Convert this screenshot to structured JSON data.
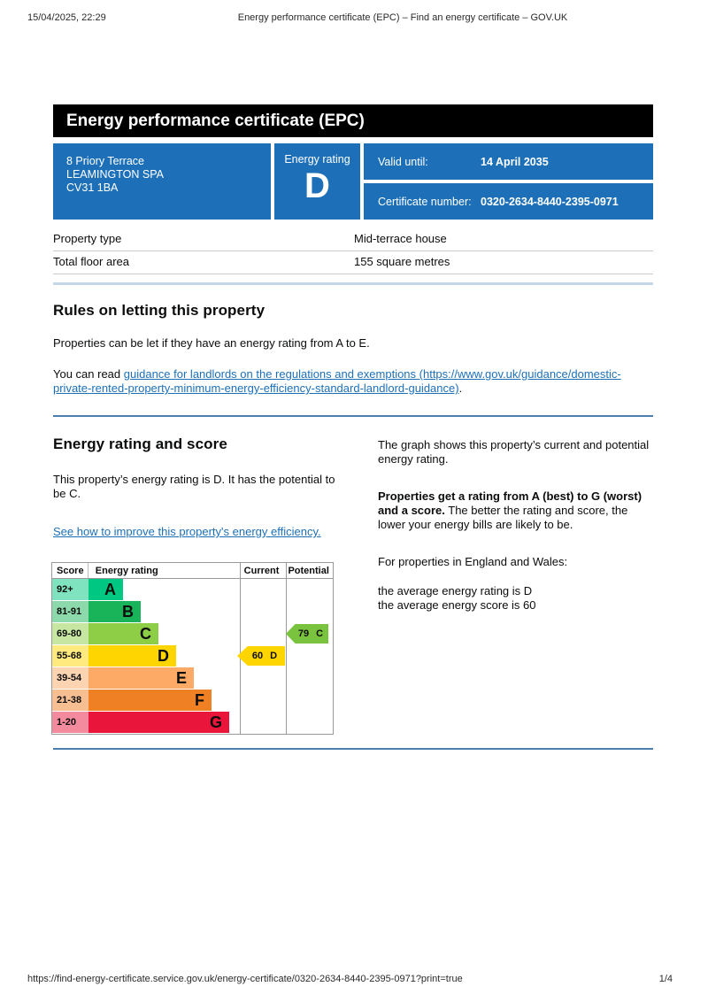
{
  "print_header": {
    "datetime": "15/04/2025, 22:29",
    "title": "Energy performance certificate (EPC) – Find an energy certificate – GOV.UK"
  },
  "banner": {
    "title": "Energy performance certificate (EPC)"
  },
  "summary": {
    "address_line1": "8 Priory Terrace",
    "address_line2": "LEAMINGTON SPA",
    "address_line3": "CV31 1BA",
    "energy_rating_label": "Energy rating",
    "energy_rating_value": "D",
    "valid_until_label": "Valid until:",
    "valid_until_value": "14 April 2035",
    "certificate_number_label": "Certificate number:",
    "certificate_number_value": "0320-2634-8440-2395-0971",
    "box_color": "#1d70b8"
  },
  "property_details": {
    "rows": [
      {
        "label": "Property type",
        "value": "Mid-terrace house"
      },
      {
        "label": "Total floor area",
        "value": "155 square metres"
      }
    ]
  },
  "rules_section": {
    "heading": "Rules on letting this property",
    "paragraph1": "Properties can be let if they have an energy rating from A to E.",
    "paragraph2_prefix": "You can read ",
    "paragraph2_link": "guidance for landlords on the regulations and exemptions (https://www.gov.uk/guidance/domestic-private-rented-property-minimum-energy-efficiency-standard-landlord-guidance)",
    "paragraph2_suffix": "."
  },
  "rating_section": {
    "heading": "Energy rating and score",
    "paragraph1": "This property’s energy rating is D. It has the potential to be C.",
    "improve_link": "See how to improve this property's energy efficiency.",
    "right_paragraph1": "The graph shows this property’s current and potential energy rating.",
    "right_paragraph2_bold": "Properties get a rating from A (best) to G (worst) and a score.",
    "right_paragraph2_rest": " The better the rating and score, the lower your energy bills are likely to be.",
    "right_paragraph3": "For properties in England and Wales:",
    "right_line_avg_rating": "the average energy rating is D",
    "right_line_avg_score": "the average energy score is 60"
  },
  "chart_data": {
    "type": "bar",
    "title": "EPC energy rating and score chart",
    "headers": {
      "score": "Score",
      "rating": "Energy rating",
      "current": "Current",
      "potential": "Potential"
    },
    "bands": [
      {
        "score_range": "92+",
        "letter": "A",
        "color": "#00c781",
        "tint": "#80e3c0"
      },
      {
        "score_range": "81-91",
        "letter": "B",
        "color": "#19b459",
        "tint": "#8cd9ac"
      },
      {
        "score_range": "69-80",
        "letter": "C",
        "color": "#8dce46",
        "tint": "#c6e6a2"
      },
      {
        "score_range": "55-68",
        "letter": "D",
        "color": "#ffd500",
        "tint": "#ffea80"
      },
      {
        "score_range": "39-54",
        "letter": "E",
        "color": "#fcaa65",
        "tint": "#fdd4b2"
      },
      {
        "score_range": "21-38",
        "letter": "F",
        "color": "#ef8023",
        "tint": "#f7bf91"
      },
      {
        "score_range": "1-20",
        "letter": "G",
        "color": "#e9153b",
        "tint": "#f48a9d"
      }
    ],
    "current": {
      "score": "60",
      "letter": "D",
      "band": "D",
      "color": "#ffd500"
    },
    "potential": {
      "score": "79",
      "letter": "C",
      "band": "C",
      "color": "#7ac33e"
    }
  },
  "print_footer": {
    "url": "https://find-energy-certificate.service.gov.uk/energy-certificate/0320-2634-8440-2395-0971?print=true",
    "page": "1/4"
  }
}
